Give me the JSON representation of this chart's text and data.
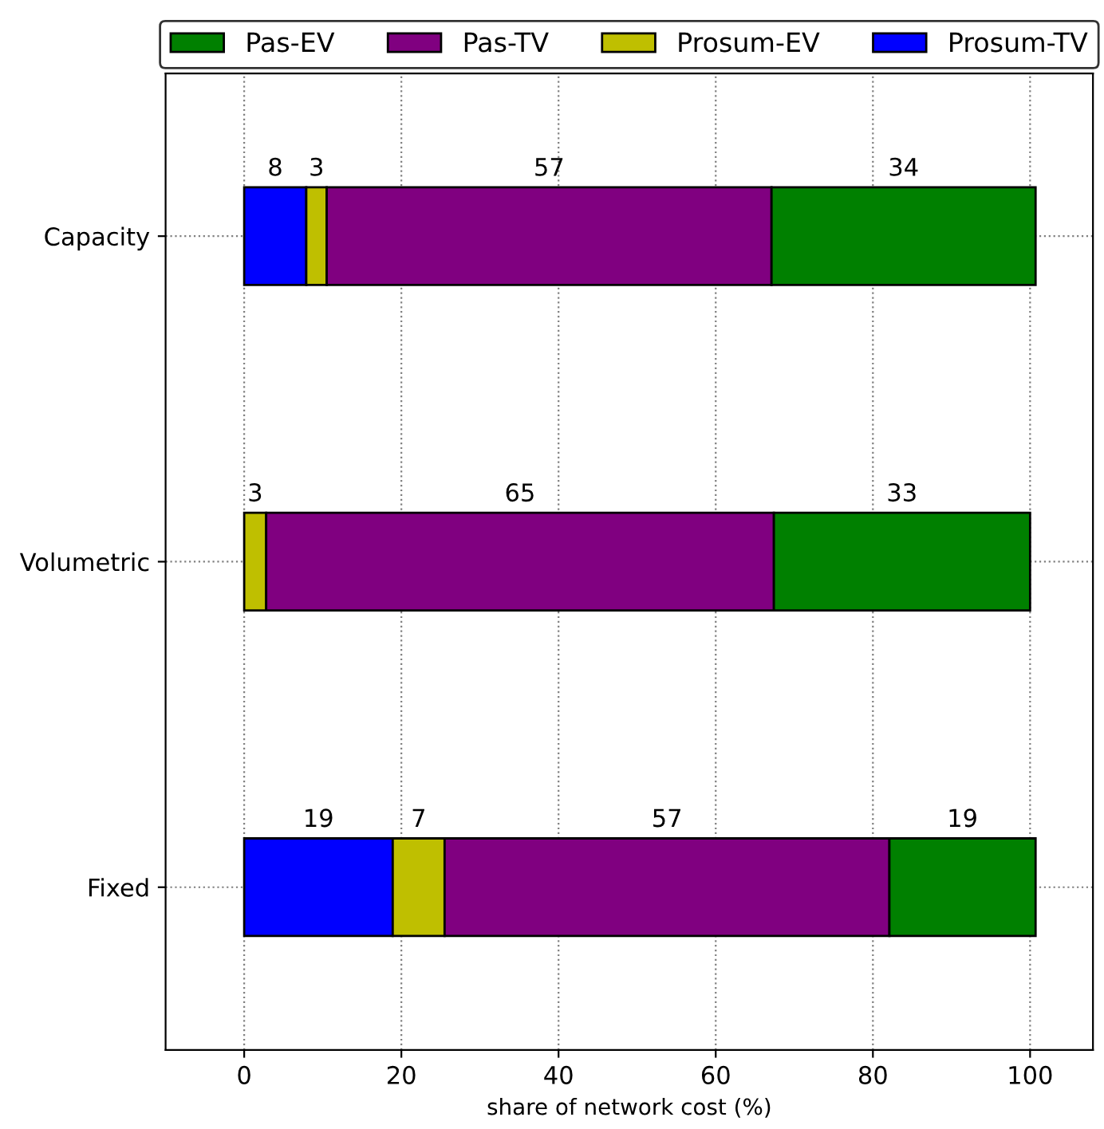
{
  "chart_data": {
    "type": "bar",
    "orientation": "horizontal",
    "stacked": true,
    "categories": [
      "Capacity",
      "Volumetric",
      "Fixed"
    ],
    "series": [
      {
        "name": "Prosum-TV",
        "color": "#0000ff",
        "values": [
          7.9,
          null,
          18.9
        ],
        "value_labels": [
          "8",
          null,
          "19"
        ]
      },
      {
        "name": "Prosum-EV",
        "color": "#bfbf00",
        "values": [
          2.6,
          2.8,
          6.6
        ],
        "value_labels": [
          "3",
          "3",
          "7"
        ]
      },
      {
        "name": "Pas-TV",
        "color": "#800080",
        "values": [
          56.6,
          64.6,
          56.6
        ],
        "value_labels": [
          "57",
          "65",
          "57"
        ]
      },
      {
        "name": "Pas-EV",
        "color": "#008000",
        "values": [
          33.6,
          32.6,
          18.6
        ],
        "value_labels": [
          "34",
          "33",
          "19"
        ]
      }
    ],
    "xlabel": "share of network cost (%)",
    "xlim": [
      -10,
      108
    ],
    "xticks": [
      0,
      20,
      40,
      60,
      80,
      100
    ],
    "grid": true,
    "legend": "top"
  }
}
